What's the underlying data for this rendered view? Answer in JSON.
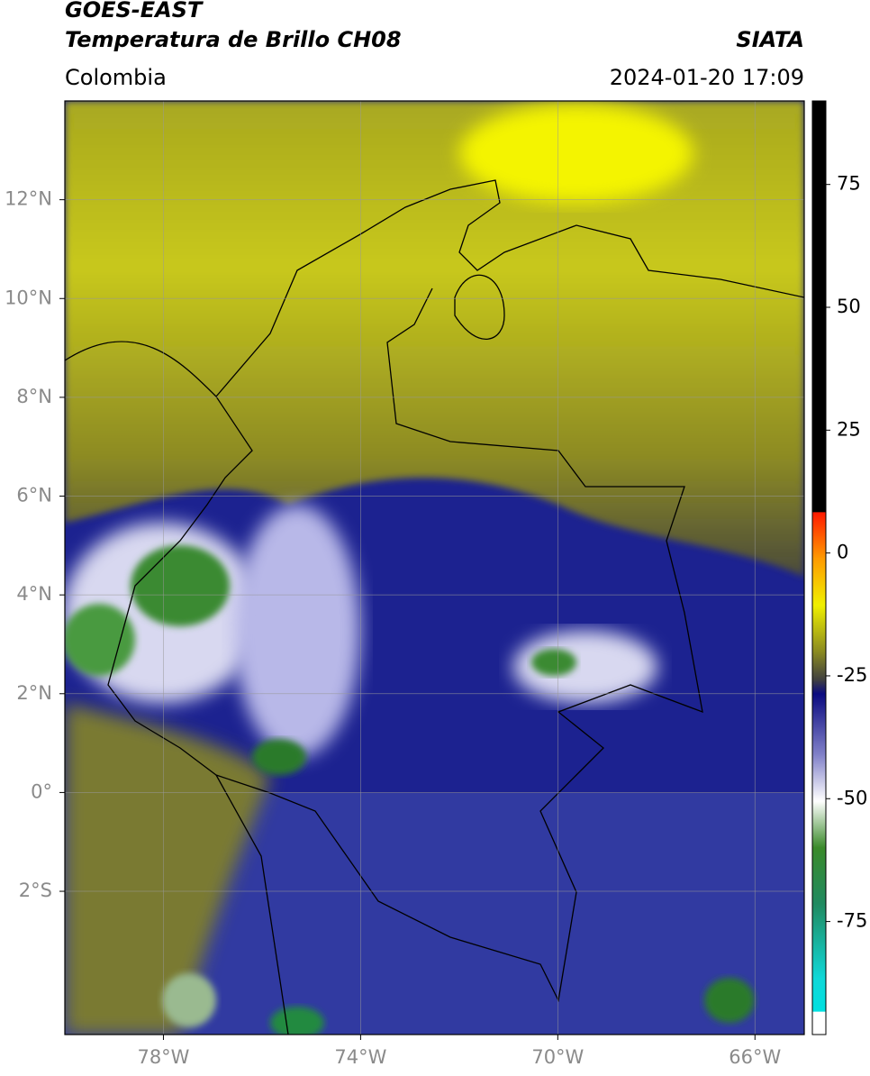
{
  "header": {
    "satellite": "GOES-EAST",
    "product": "Temperatura de Brillo CH08",
    "source": "SIATA",
    "region": "Colombia",
    "datetime": "2024-01-20 17:09"
  },
  "map": {
    "xlim": [
      -80,
      -65
    ],
    "ylim": [
      -4.9,
      14
    ],
    "xticks": [
      {
        "value": -78,
        "label": "78°W"
      },
      {
        "value": -74,
        "label": "74°W"
      },
      {
        "value": -70,
        "label": "70°W"
      },
      {
        "value": -66,
        "label": "66°W"
      }
    ],
    "yticks": [
      {
        "value": 12,
        "label": "12°N"
      },
      {
        "value": 10,
        "label": "10°N"
      },
      {
        "value": 8,
        "label": "8°N"
      },
      {
        "value": 6,
        "label": "6°N"
      },
      {
        "value": 4,
        "label": "4°N"
      },
      {
        "value": 2,
        "label": "2°N"
      },
      {
        "value": 0,
        "label": "0°"
      },
      {
        "value": -2,
        "label": "2°S"
      }
    ],
    "grid": true
  },
  "colorbar": {
    "lim": [
      -98,
      92
    ],
    "ticks": [
      75,
      50,
      25,
      0,
      -25,
      -50,
      -75
    ]
  }
}
